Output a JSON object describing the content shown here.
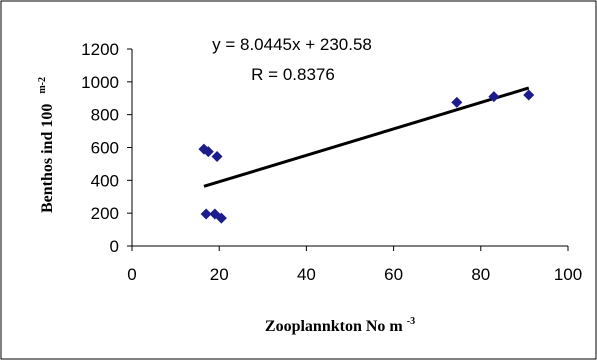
{
  "chart_data": {
    "type": "scatter",
    "xlabel": "Zooplannkton No m",
    "xlabel_exponent": "-3",
    "ylabel": "Benthos ind 100",
    "ylabel_exponent": "m-2",
    "xlim": [
      0,
      100
    ],
    "ylim": [
      0,
      1200
    ],
    "x_ticks": [
      "0",
      "20",
      "40",
      "60",
      "80",
      "100"
    ],
    "y_ticks": [
      "0",
      "200",
      "400",
      "600",
      "800",
      "1000",
      "1200"
    ],
    "grid": false,
    "legend": "none",
    "marker": "diamond",
    "marker_color": "#1c1c8c",
    "line_color": "#000000",
    "series": [
      {
        "points": [
          {
            "x": 16.5,
            "y": 590
          },
          {
            "x": 17.5,
            "y": 575
          },
          {
            "x": 19.5,
            "y": 545
          },
          {
            "x": 17,
            "y": 195
          },
          {
            "x": 19,
            "y": 195
          },
          {
            "x": 20.5,
            "y": 170
          },
          {
            "x": 74.5,
            "y": 875
          },
          {
            "x": 83,
            "y": 910
          },
          {
            "x": 91,
            "y": 920
          }
        ]
      }
    ],
    "trendline": {
      "slope": 8.0445,
      "intercept": 230.58,
      "x_range": [
        16.5,
        91
      ]
    },
    "annotations": {
      "equation": "y = 8.0445x + 230.58",
      "r_value": "R = 0.8376"
    }
  }
}
